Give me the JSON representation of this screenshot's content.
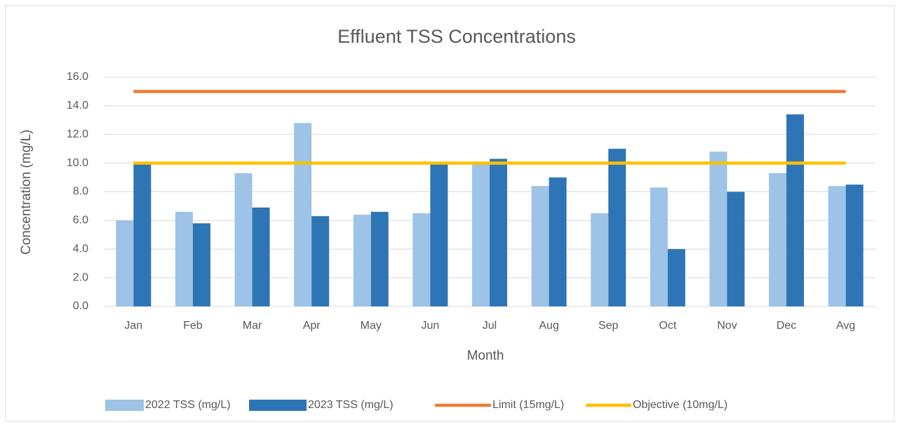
{
  "chart_data": {
    "type": "bar",
    "title": "Effluent TSS Concentrations",
    "x_label": "Month",
    "y_label": "Concentration (mg/L)",
    "categories": [
      "Jan",
      "Feb",
      "Mar",
      "Apr",
      "May",
      "Jun",
      "Jul",
      "Aug",
      "Sep",
      "Oct",
      "Nov",
      "Dec",
      "Avg"
    ],
    "series": [
      {
        "name": "2022  TSS (mg/L)",
        "type": "bar",
        "color": "#9dc3e6",
        "values": [
          6.0,
          6.6,
          9.3,
          12.8,
          6.4,
          6.5,
          10.0,
          8.4,
          6.5,
          8.3,
          10.8,
          9.3,
          8.4
        ]
      },
      {
        "name": "2023  TSS (mg/L)",
        "type": "bar",
        "color": "#2e75b6",
        "values": [
          10.0,
          5.8,
          6.9,
          6.3,
          6.6,
          10.0,
          10.3,
          9.0,
          11.0,
          4.0,
          8.0,
          13.4,
          8.5
        ]
      },
      {
        "name": "Limit (15mg/L)",
        "type": "line",
        "color": "#ed7d31",
        "values": [
          15,
          15,
          15,
          15,
          15,
          15,
          15,
          15,
          15,
          15,
          15,
          15,
          15
        ]
      },
      {
        "name": "Objective (10mg/L)",
        "type": "line",
        "color": "#ffc000",
        "values": [
          10,
          10,
          10,
          10,
          10,
          10,
          10,
          10,
          10,
          10,
          10,
          10,
          10
        ]
      }
    ],
    "ylim": [
      0,
      16
    ],
    "yticks": [
      {
        "value": 0,
        "label": "0.0"
      },
      {
        "value": 2,
        "label": "2.0"
      },
      {
        "value": 4,
        "label": "4.0"
      },
      {
        "value": 6,
        "label": "6.0"
      },
      {
        "value": 8,
        "label": "8.0"
      },
      {
        "value": 10,
        "label": "10.0"
      },
      {
        "value": 12,
        "label": "12.0"
      },
      {
        "value": 14,
        "label": "14.0"
      },
      {
        "value": 16,
        "label": "16.0"
      }
    ],
    "grid": true,
    "legend": "bottom"
  }
}
